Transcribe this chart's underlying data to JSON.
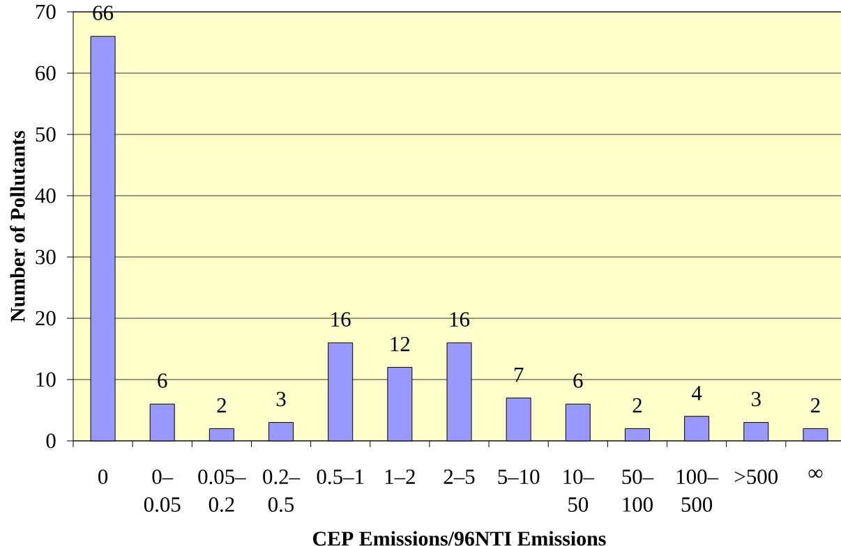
{
  "chart_data": {
    "type": "bar",
    "xlabel": "CEP Emissions/96NTI Emissions",
    "ylabel": "Number of Pollutants",
    "categories": [
      "0",
      "0–0.05",
      "0.05–0.2",
      "0.2–0.5",
      "0.5–1",
      "1–2",
      "2–5",
      "5–10",
      "10–50",
      "50–100",
      "100–500",
      ">500",
      "∞"
    ],
    "values": [
      66,
      6,
      2,
      3,
      16,
      12,
      16,
      7,
      6,
      2,
      4,
      3,
      2
    ],
    "color": "#9999ff",
    "ylim": [
      0,
      70
    ],
    "yticks": [
      0,
      10,
      20,
      30,
      40,
      50,
      60,
      70
    ],
    "grid": "y",
    "data_labels": true
  }
}
